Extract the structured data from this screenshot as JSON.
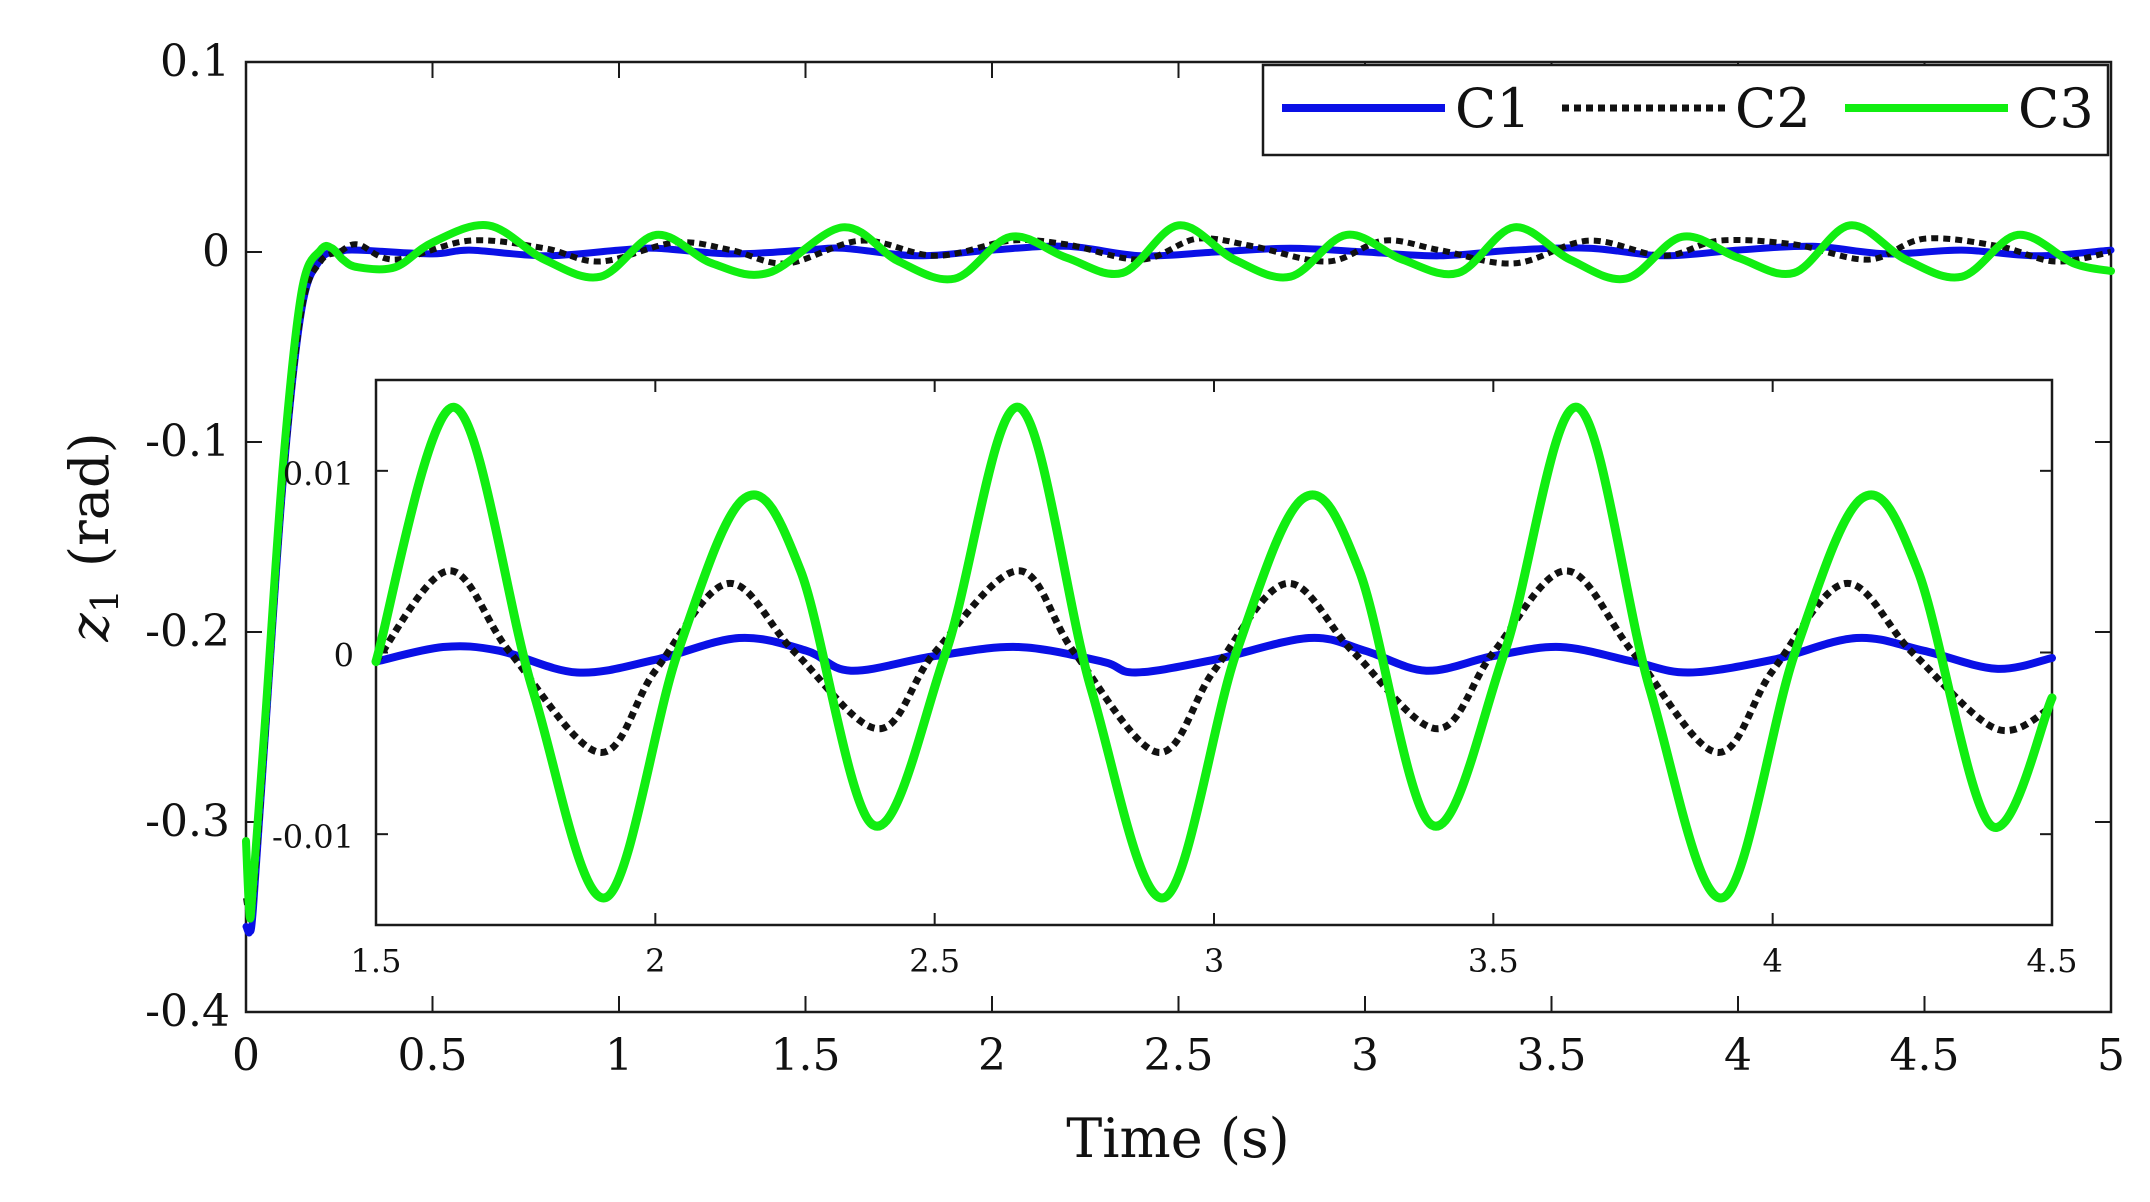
{
  "chart_data": [
    {
      "id": "main",
      "type": "line",
      "title": "",
      "xlabel": "Time (s)",
      "ylabel_symbol": "z",
      "ylabel_subscript": "1",
      "ylabel_unit": "(rad)",
      "xlim": [
        0,
        5
      ],
      "ylim": [
        -0.4,
        0.1
      ],
      "xticks": [
        0,
        0.5,
        1,
        1.5,
        2,
        2.5,
        3,
        3.5,
        4,
        4.5,
        5
      ],
      "xtick_labels": [
        "0",
        "0.5",
        "1",
        "1.5",
        "2",
        "2.5",
        "3",
        "3.5",
        "4",
        "4.5",
        "5"
      ],
      "yticks": [
        -0.4,
        -0.3,
        -0.2,
        -0.1,
        0,
        0.1
      ],
      "ytick_labels": [
        "-0.4",
        "-0.3",
        "-0.2",
        "-0.1",
        "0",
        "0.1"
      ],
      "grid": false,
      "legend": {
        "position": "top-right",
        "orientation": "horizontal",
        "entries": [
          "C1",
          "C2",
          "C3"
        ]
      },
      "series": [
        {
          "name": "C1",
          "color": "#0a10e6",
          "style": "solid",
          "x": [
            0,
            0.01,
            0.02,
            0.05,
            0.1,
            0.15,
            0.2,
            0.25,
            0.3,
            0.5,
            0.6,
            0.8,
            1.0,
            1.1,
            1.3,
            1.5,
            1.6,
            1.8,
            2.0,
            2.2,
            2.4,
            2.6,
            2.8,
            3.0,
            3.2,
            3.4,
            3.6,
            3.8,
            4.0,
            4.2,
            4.4,
            4.6,
            4.8,
            5.0
          ],
          "values": [
            -0.355,
            -0.358,
            -0.345,
            -0.26,
            -0.12,
            -0.03,
            -0.004,
            0.0,
            0.001,
            -0.001,
            0.001,
            -0.002,
            0.001,
            0.002,
            -0.001,
            0.001,
            0.002,
            -0.002,
            0.001,
            0.003,
            -0.002,
            0.0,
            0.002,
            0.0,
            -0.002,
            0.001,
            0.002,
            -0.002,
            0.001,
            0.003,
            -0.001,
            0.001,
            -0.002,
            0.001
          ]
        },
        {
          "name": "C2",
          "color": "#111111",
          "style": "dotted",
          "x": [
            0,
            0.01,
            0.02,
            0.05,
            0.1,
            0.15,
            0.2,
            0.25,
            0.3,
            0.4,
            0.6,
            0.8,
            0.95,
            1.15,
            1.3,
            1.45,
            1.65,
            1.85,
            2.05,
            2.2,
            2.4,
            2.55,
            2.7,
            2.9,
            3.05,
            3.2,
            3.4,
            3.6,
            3.8,
            3.95,
            4.15,
            4.35,
            4.5,
            4.7,
            4.85,
            5.0
          ],
          "values": [
            -0.34,
            -0.35,
            -0.34,
            -0.26,
            -0.12,
            -0.03,
            -0.005,
            0.0,
            0.004,
            -0.004,
            0.006,
            0.002,
            -0.005,
            0.005,
            0.001,
            -0.006,
            0.006,
            -0.002,
            0.006,
            0.004,
            -0.004,
            0.007,
            0.003,
            -0.005,
            0.006,
            0.001,
            -0.006,
            0.006,
            -0.002,
            0.006,
            0.004,
            -0.004,
            0.007,
            0.003,
            -0.005,
            0.0
          ]
        },
        {
          "name": "C3",
          "color": "#11ee11",
          "style": "solid",
          "x": [
            0,
            0.01,
            0.02,
            0.05,
            0.1,
            0.15,
            0.2,
            0.23,
            0.26,
            0.3,
            0.4,
            0.5,
            0.65,
            0.8,
            0.95,
            1.1,
            1.25,
            1.4,
            1.6,
            1.75,
            1.9,
            2.05,
            2.2,
            2.35,
            2.5,
            2.65,
            2.8,
            2.95,
            3.1,
            3.25,
            3.4,
            3.55,
            3.7,
            3.85,
            4.0,
            4.15,
            4.3,
            4.45,
            4.6,
            4.75,
            4.9,
            5.0
          ],
          "values": [
            -0.31,
            -0.35,
            -0.33,
            -0.25,
            -0.11,
            -0.02,
            0.001,
            0.002,
            -0.004,
            -0.008,
            -0.008,
            0.005,
            0.014,
            -0.004,
            -0.013,
            0.009,
            -0.006,
            -0.011,
            0.013,
            -0.005,
            -0.014,
            0.008,
            -0.003,
            -0.011,
            0.014,
            -0.004,
            -0.013,
            0.009,
            -0.004,
            -0.011,
            0.013,
            -0.004,
            -0.014,
            0.008,
            -0.003,
            -0.011,
            0.014,
            -0.004,
            -0.013,
            0.009,
            -0.006,
            -0.01
          ]
        }
      ]
    },
    {
      "id": "inset",
      "type": "line",
      "title": "",
      "xlabel": "",
      "ylabel": "",
      "xlim": [
        1.5,
        4.5
      ],
      "ylim": [
        -0.015,
        0.015
      ],
      "xticks": [
        1.5,
        2,
        2.5,
        3,
        3.5,
        4,
        4.5
      ],
      "xtick_labels": [
        "1.5",
        "2",
        "2.5",
        "3",
        "3.5",
        "4",
        "4.5"
      ],
      "yticks": [
        -0.01,
        0,
        0.01
      ],
      "ytick_labels": [
        "-0.01",
        "0",
        "0.01"
      ],
      "grid": false,
      "series": [
        {
          "name": "C1",
          "color": "#0a10e6",
          "style": "solid",
          "x": [
            1.5,
            1.62,
            1.72,
            1.86,
            2.0,
            2.15,
            2.27,
            2.35,
            2.5,
            2.65,
            2.8,
            2.86,
            3.0,
            3.17,
            3.27,
            3.38,
            3.5,
            3.62,
            3.75,
            3.85,
            4.0,
            4.15,
            4.27,
            4.4,
            4.5
          ],
          "values": [
            -0.0005,
            0.0003,
            0.0001,
            -0.0011,
            -0.0004,
            0.0008,
            0.0001,
            -0.001,
            -0.0002,
            0.0003,
            -0.0005,
            -0.0011,
            -0.0004,
            0.0008,
            0.0001,
            -0.001,
            -0.0002,
            0.0003,
            -0.0005,
            -0.0011,
            -0.0004,
            0.0008,
            0.0001,
            -0.0009,
            -0.0003
          ]
        },
        {
          "name": "C2",
          "color": "#111111",
          "style": "dotted",
          "x": [
            1.5,
            1.63,
            1.74,
            1.9,
            2.0,
            2.13,
            2.25,
            2.4,
            2.5,
            2.65,
            2.75,
            2.9,
            3.0,
            3.13,
            3.25,
            3.4,
            3.5,
            3.63,
            3.75,
            3.9,
            4.0,
            4.13,
            4.25,
            4.4,
            4.5
          ],
          "values": [
            -0.0005,
            0.0045,
            0.0,
            -0.0055,
            -0.001,
            0.0038,
            0.0,
            -0.0042,
            0.0,
            0.0045,
            0.0,
            -0.0055,
            -0.001,
            0.0038,
            0.0,
            -0.0042,
            0.0,
            0.0045,
            0.0,
            -0.0055,
            -0.001,
            0.0038,
            0.0,
            -0.0042,
            -0.003
          ]
        },
        {
          "name": "C3",
          "color": "#11ee11",
          "style": "solid",
          "x": [
            1.5,
            1.64,
            1.78,
            1.91,
            2.04,
            2.16,
            2.26,
            2.39,
            2.52,
            2.65,
            2.78,
            2.91,
            3.04,
            3.16,
            3.26,
            3.39,
            3.52,
            3.65,
            3.78,
            3.91,
            4.04,
            4.16,
            4.26,
            4.39,
            4.5
          ],
          "values": [
            -0.0005,
            0.0135,
            -0.002,
            -0.0135,
            0.0,
            0.0085,
            0.0045,
            -0.0095,
            0.0,
            0.0135,
            -0.002,
            -0.0135,
            0.0,
            0.0085,
            0.0045,
            -0.0095,
            0.0,
            0.0135,
            -0.002,
            -0.0135,
            0.0,
            0.0085,
            0.0045,
            -0.0095,
            -0.0025
          ]
        }
      ]
    }
  ]
}
